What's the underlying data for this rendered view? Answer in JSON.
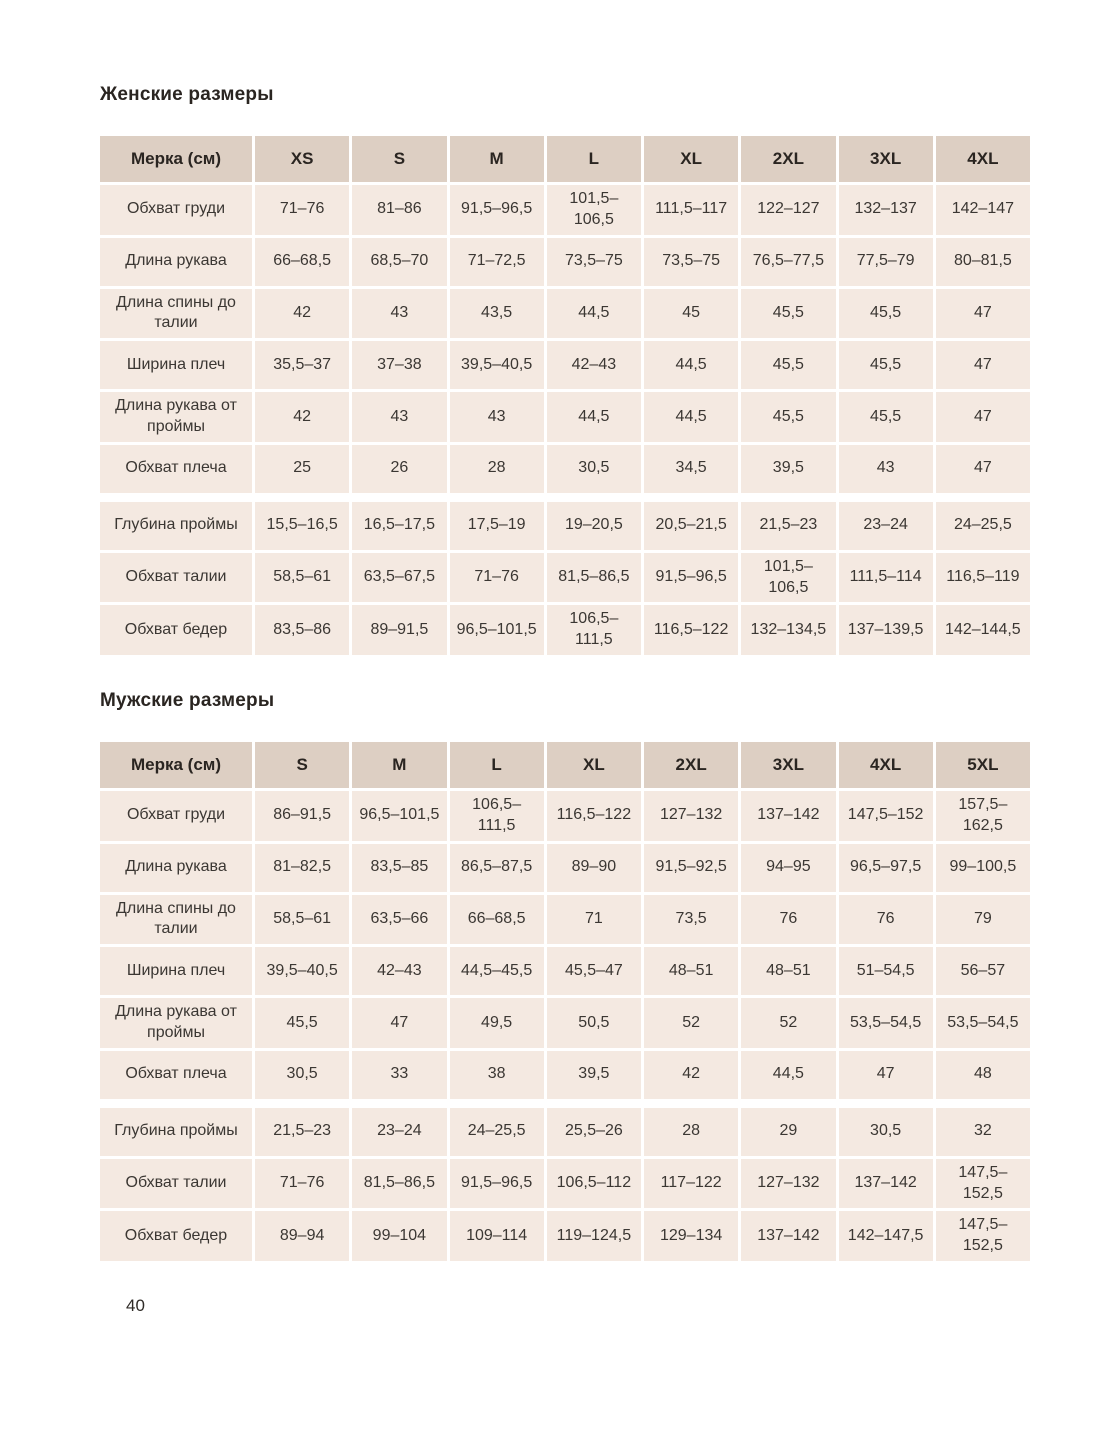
{
  "meta": {
    "page_number": "40"
  },
  "tables": [
    {
      "title": "Женские размеры",
      "columns": [
        "Мерка (см)",
        "XS",
        "S",
        "M",
        "L",
        "XL",
        "2XL",
        "3XL",
        "4XL"
      ],
      "gap_after_row": 6,
      "rows": [
        {
          "label": "Обхват груди",
          "values": [
            "71–76",
            "81–86",
            "91,5–96,5",
            "101,5–106,5",
            "111,5–117",
            "122–127",
            "132–137",
            "142–147"
          ]
        },
        {
          "label": "Длина рукава",
          "values": [
            "66–68,5",
            "68,5–70",
            "71–72,5",
            "73,5–75",
            "73,5–75",
            "76,5–77,5",
            "77,5–79",
            "80–81,5"
          ]
        },
        {
          "label": "Длина спины до талии",
          "values": [
            "42",
            "43",
            "43,5",
            "44,5",
            "45",
            "45,5",
            "45,5",
            "47"
          ]
        },
        {
          "label": "Ширина плеч",
          "values": [
            "35,5–37",
            "37–38",
            "39,5–40,5",
            "42–43",
            "44,5",
            "45,5",
            "45,5",
            "47"
          ]
        },
        {
          "label": "Длина рукава от проймы",
          "values": [
            "42",
            "43",
            "43",
            "44,5",
            "44,5",
            "45,5",
            "45,5",
            "47"
          ]
        },
        {
          "label": "Обхват плеча",
          "values": [
            "25",
            "26",
            "28",
            "30,5",
            "34,5",
            "39,5",
            "43",
            "47"
          ]
        },
        {
          "label": "Глубина проймы",
          "values": [
            "15,5–16,5",
            "16,5–17,5",
            "17,5–19",
            "19–20,5",
            "20,5–21,5",
            "21,5–23",
            "23–24",
            "24–25,5"
          ]
        },
        {
          "label": "Обхват талии",
          "values": [
            "58,5–61",
            "63,5–67,5",
            "71–76",
            "81,5–86,5",
            "91,5–96,5",
            "101,5–106,5",
            "111,5–114",
            "116,5–119"
          ]
        },
        {
          "label": "Обхват бедер",
          "values": [
            "83,5–86",
            "89–91,5",
            "96,5–101,5",
            "106,5–111,5",
            "116,5–122",
            "132–134,5",
            "137–139,5",
            "142–144,5"
          ]
        }
      ]
    },
    {
      "title": "Мужские размеры",
      "columns": [
        "Мерка (см)",
        "S",
        "M",
        "L",
        "XL",
        "2XL",
        "3XL",
        "4XL",
        "5XL"
      ],
      "gap_after_row": 6,
      "rows": [
        {
          "label": "Обхват груди",
          "values": [
            "86–91,5",
            "96,5–101,5",
            "106,5–111,5",
            "116,5–122",
            "127–132",
            "137–142",
            "147,5–152",
            "157,5–162,5"
          ]
        },
        {
          "label": "Длина рукава",
          "values": [
            "81–82,5",
            "83,5–85",
            "86,5–87,5",
            "89–90",
            "91,5–92,5",
            "94–95",
            "96,5–97,5",
            "99–100,5"
          ]
        },
        {
          "label": "Длина спины до талии",
          "values": [
            "58,5–61",
            "63,5–66",
            "66–68,5",
            "71",
            "73,5",
            "76",
            "76",
            "79"
          ]
        },
        {
          "label": "Ширина плеч",
          "values": [
            "39,5–40,5",
            "42–43",
            "44,5–45,5",
            "45,5–47",
            "48–51",
            "48–51",
            "51–54,5",
            "56–57"
          ]
        },
        {
          "label": "Длина рукава от проймы",
          "values": [
            "45,5",
            "47",
            "49,5",
            "50,5",
            "52",
            "52",
            "53,5–54,5",
            "53,5–54,5"
          ]
        },
        {
          "label": "Обхват плеча",
          "values": [
            "30,5",
            "33",
            "38",
            "39,5",
            "42",
            "44,5",
            "47",
            "48"
          ]
        },
        {
          "label": "Глубина проймы",
          "values": [
            "21,5–23",
            "23–24",
            "24–25,5",
            "25,5–26",
            "28",
            "29",
            "30,5",
            "32"
          ]
        },
        {
          "label": "Обхват талии",
          "values": [
            "71–76",
            "81,5–86,5",
            "91,5–96,5",
            "106,5–112",
            "117–122",
            "127–132",
            "137–142",
            "147,5–152,5"
          ]
        },
        {
          "label": "Обхват бедер",
          "values": [
            "89–94",
            "99–104",
            "109–114",
            "119–124,5",
            "129–134",
            "137–142",
            "142–147,5",
            "147,5–152,5"
          ]
        }
      ]
    }
  ]
}
